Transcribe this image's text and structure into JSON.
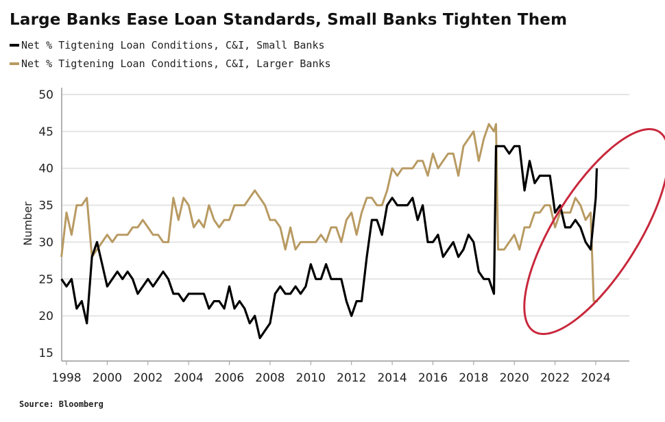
{
  "chart_data": {
    "type": "line",
    "title": "Large Banks Ease Loan Standards, Small Banks Tighten Them",
    "ylabel": "Number",
    "xlabel": "",
    "source": "Source: Bloomberg",
    "ylim": [
      15,
      50
    ],
    "xlim": [
      1997.6,
      2026.0
    ],
    "yticks": [
      15,
      20,
      25,
      30,
      35,
      40,
      45,
      50
    ],
    "xticks": [
      1998,
      2000,
      2002,
      2004,
      2006,
      2008,
      2010,
      2012,
      2014,
      2016,
      2018,
      2020,
      2022,
      2024
    ],
    "grid": "horizontal",
    "legend_position": "top-left",
    "annotation": {
      "shape": "ellipse",
      "color": "#c8283c",
      "highlights": "2022-2024"
    },
    "series": [
      {
        "name": "Net % Tigtening Loan Conditions, C&I, Small Banks",
        "color": "#000000",
        "x": [
          1997.75,
          1998,
          1998.25,
          1998.5,
          1998.75,
          1999,
          1999.25,
          1999.5,
          1999.75,
          2000,
          2000.25,
          2000.5,
          2000.75,
          2001,
          2001.25,
          2001.5,
          2001.75,
          2002,
          2002.25,
          2002.5,
          2002.75,
          2003,
          2003.25,
          2003.5,
          2003.75,
          2004,
          2004.25,
          2004.5,
          2004.75,
          2005,
          2005.25,
          2005.5,
          2005.75,
          2006,
          2006.25,
          2006.5,
          2006.75,
          2007,
          2007.25,
          2007.5,
          2007.75,
          2008,
          2008.25,
          2008.5,
          2008.75,
          2009,
          2009.25,
          2009.5,
          2009.75,
          2010,
          2010.25,
          2010.5,
          2010.75,
          2011,
          2011.25,
          2011.5,
          2011.75,
          2012,
          2012.25,
          2012.5,
          2012.75,
          2013,
          2013.25,
          2013.5,
          2013.75,
          2014,
          2014.25,
          2014.5,
          2014.75,
          2015,
          2015.25,
          2015.5,
          2015.75,
          2016,
          2016.25,
          2016.5,
          2016.75,
          2017,
          2017.25,
          2017.5,
          2017.75,
          2018,
          2018.25,
          2018.5,
          2018.75,
          2019,
          2019.1,
          2019.5,
          2019.75,
          2020,
          2020.25,
          2020.5,
          2020.75,
          2021,
          2021.25,
          2021.5,
          2021.75,
          2022,
          2022.25,
          2022.5,
          2022.75,
          2023,
          2023.25,
          2023.5,
          2023.75,
          2024,
          2024.05
        ],
        "values": [
          25,
          24,
          25,
          21,
          22,
          19,
          28,
          30,
          27,
          24,
          25,
          26,
          25,
          26,
          25,
          23,
          24,
          25,
          24,
          25,
          26,
          25,
          23,
          23,
          22,
          23,
          23,
          23,
          23,
          21,
          22,
          22,
          21,
          24,
          21,
          22,
          21,
          19,
          20,
          17,
          18,
          19,
          23,
          24,
          23,
          23,
          24,
          23,
          24,
          27,
          25,
          25,
          27,
          25,
          25,
          25,
          22,
          20,
          22,
          22,
          28,
          33,
          33,
          31,
          35,
          36,
          35,
          35,
          35,
          36,
          33,
          35,
          30,
          30,
          31,
          28,
          29,
          30,
          28,
          29,
          31,
          30,
          26,
          25,
          25,
          23,
          43,
          43,
          42,
          43,
          43,
          37,
          41,
          38,
          39,
          39,
          39,
          34,
          35,
          32,
          32,
          33,
          32,
          30,
          29,
          36,
          40
        ]
      },
      {
        "name": "Net % Tigtening Loan Conditions, C&I, Larger Banks",
        "color": "#b89a62",
        "x": [
          1997.75,
          1998,
          1998.25,
          1998.5,
          1998.75,
          1999,
          1999.25,
          1999.5,
          1999.75,
          2000,
          2000.25,
          2000.5,
          2000.75,
          2001,
          2001.25,
          2001.5,
          2001.75,
          2002,
          2002.25,
          2002.5,
          2002.75,
          2003,
          2003.25,
          2003.5,
          2003.75,
          2004,
          2004.25,
          2004.5,
          2004.75,
          2005,
          2005.25,
          2005.5,
          2005.75,
          2006,
          2006.25,
          2006.5,
          2006.75,
          2007,
          2007.25,
          2007.5,
          2007.75,
          2008,
          2008.25,
          2008.5,
          2008.75,
          2009,
          2009.25,
          2009.5,
          2009.75,
          2010,
          2010.25,
          2010.5,
          2010.75,
          2011,
          2011.25,
          2011.5,
          2011.75,
          2012,
          2012.25,
          2012.5,
          2012.75,
          2013,
          2013.25,
          2013.5,
          2013.75,
          2014,
          2014.25,
          2014.5,
          2014.75,
          2015,
          2015.25,
          2015.5,
          2015.75,
          2016,
          2016.25,
          2016.5,
          2016.75,
          2017,
          2017.25,
          2017.5,
          2017.75,
          2018,
          2018.25,
          2018.5,
          2018.75,
          2019,
          2019.1,
          2019.2,
          2019.5,
          2019.75,
          2020,
          2020.25,
          2020.5,
          2020.75,
          2021,
          2021.25,
          2021.5,
          2021.75,
          2022,
          2022.25,
          2022.5,
          2022.75,
          2023,
          2023.25,
          2023.5,
          2023.75,
          2023.9,
          2024.1
        ],
        "values": [
          28,
          34,
          31,
          35,
          35,
          36,
          28,
          29,
          30,
          31,
          30,
          31,
          31,
          31,
          32,
          32,
          33,
          32,
          31,
          31,
          30,
          30,
          36,
          33,
          36,
          35,
          32,
          33,
          32,
          35,
          33,
          32,
          33,
          33,
          35,
          35,
          35,
          36,
          37,
          36,
          35,
          33,
          33,
          32,
          29,
          32,
          29,
          30,
          30,
          30,
          30,
          31,
          30,
          32,
          32,
          30,
          33,
          34,
          31,
          34,
          36,
          36,
          35,
          35,
          37,
          40,
          39,
          40,
          40,
          40,
          41,
          41,
          39,
          42,
          40,
          41,
          42,
          42,
          39,
          43,
          44,
          45,
          41,
          44,
          46,
          45,
          46,
          29,
          29,
          30,
          31,
          29,
          32,
          32,
          34,
          34,
          35,
          35,
          32,
          34,
          34,
          34,
          36,
          35,
          33,
          34,
          22,
          22
        ]
      }
    ]
  }
}
